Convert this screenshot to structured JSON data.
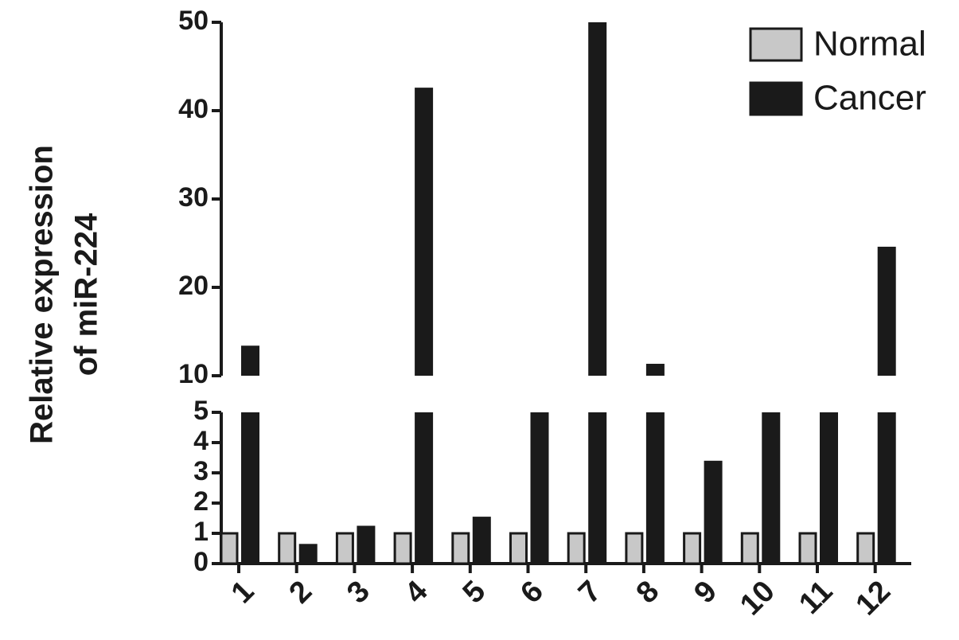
{
  "chart_data": {
    "type": "bar",
    "ylabel": [
      "Relative expression",
      "of miR-224"
    ],
    "categories": [
      "1",
      "2",
      "3",
      "4",
      "5",
      "6",
      "7",
      "8",
      "9",
      "10",
      "11",
      "12"
    ],
    "series": [
      {
        "name": "Normal",
        "color": "#c8c8c8",
        "values": [
          1,
          1,
          1,
          1,
          1,
          1,
          1,
          1,
          1,
          1,
          1,
          1
        ]
      },
      {
        "name": "Cancer",
        "color": "#1a1a1a",
        "values": [
          13.4,
          0.65,
          1.25,
          42.6,
          1.55,
          7,
          50,
          11.35,
          3.4,
          7,
          7,
          24.6
        ]
      }
    ],
    "ylim": [
      0,
      50
    ],
    "ybreak": [
      5,
      10
    ],
    "yticks": [
      0,
      1,
      2,
      3,
      4,
      5,
      10,
      20,
      30,
      40,
      50
    ],
    "legend": "upper right"
  }
}
